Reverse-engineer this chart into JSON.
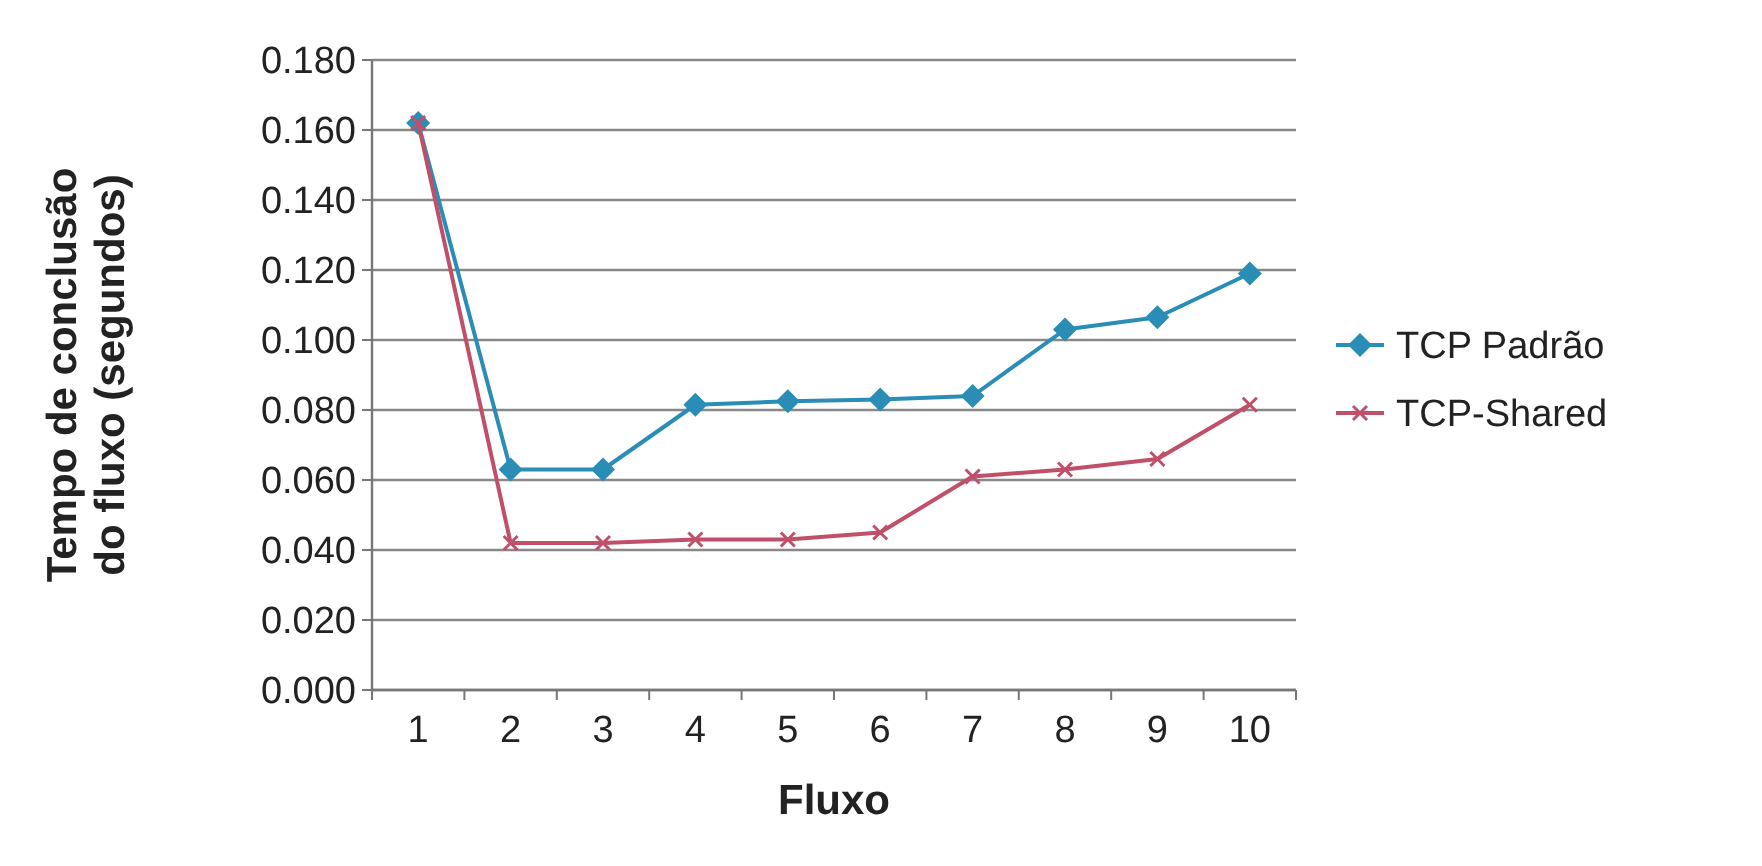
{
  "chart_data": {
    "type": "line",
    "xlabel": "Fluxo",
    "ylabel": "Tempo de conclusão do fluxo (segundos)",
    "categories": [
      "1",
      "2",
      "3",
      "4",
      "5",
      "6",
      "7",
      "8",
      "9",
      "10"
    ],
    "series": [
      {
        "name": "TCP Padrão",
        "color": "#2a8db5",
        "marker": "diamond",
        "values": [
          0.162,
          0.063,
          0.063,
          0.0815,
          0.0825,
          0.083,
          0.084,
          0.103,
          0.1065,
          0.119
        ]
      },
      {
        "name": "TCP-Shared",
        "color": "#c0506a",
        "marker": "cross",
        "values": [
          0.162,
          0.042,
          0.042,
          0.043,
          0.043,
          0.045,
          0.061,
          0.063,
          0.066,
          0.0815
        ]
      }
    ],
    "ylim": [
      0,
      0.18
    ],
    "yticks": [
      {
        "value": 0,
        "label": "0.000"
      },
      {
        "value": 0.02,
        "label": "0.020"
      },
      {
        "value": 0.04,
        "label": "0.040"
      },
      {
        "value": 0.06,
        "label": "0.060"
      },
      {
        "value": 0.08,
        "label": "0.080"
      },
      {
        "value": 0.1,
        "label": "0.100"
      },
      {
        "value": 0.12,
        "label": "0.120"
      },
      {
        "value": 0.14,
        "label": "0.140"
      },
      {
        "value": 0.16,
        "label": "0.160"
      },
      {
        "value": 0.18,
        "label": "0.180"
      }
    ],
    "grid": "y",
    "legend": "right"
  }
}
